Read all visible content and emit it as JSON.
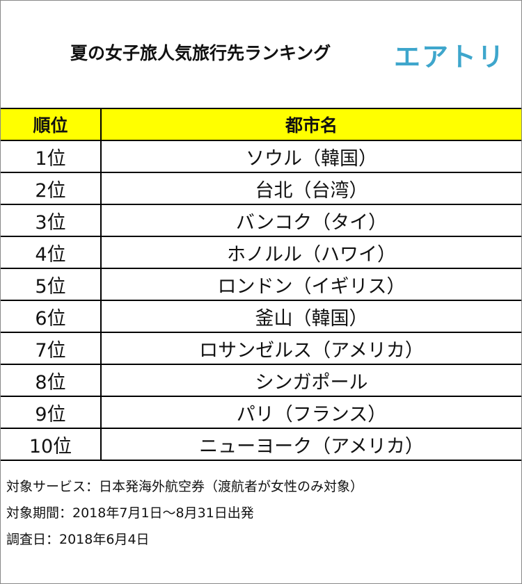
{
  "header": {
    "title": "夏の女子旅人気旅行先ランキング",
    "logo": "エアトリ"
  },
  "table": {
    "columns": [
      "順位",
      "都市名"
    ],
    "rows": [
      [
        "1位",
        "ソウル（韓国）"
      ],
      [
        "2位",
        "台北（台湾）"
      ],
      [
        "3位",
        "バンコク（タイ）"
      ],
      [
        "4位",
        "ホノルル（ハワイ）"
      ],
      [
        "5位",
        "ロンドン（イギリス）"
      ],
      [
        "6位",
        "釜山（韓国）"
      ],
      [
        "7位",
        "ロサンゼルス（アメリカ）"
      ],
      [
        "8位",
        "シンガポール"
      ],
      [
        "9位",
        "パリ（フランス）"
      ],
      [
        "10位",
        "ニューヨーク（アメリカ）"
      ]
    ]
  },
  "notes": [
    "対象サービス：日本発海外航空券（渡航者が女性のみ対象）",
    "対象期間：2018年7月1日～8月31日出発",
    "調査日：2018年6月4日"
  ]
}
